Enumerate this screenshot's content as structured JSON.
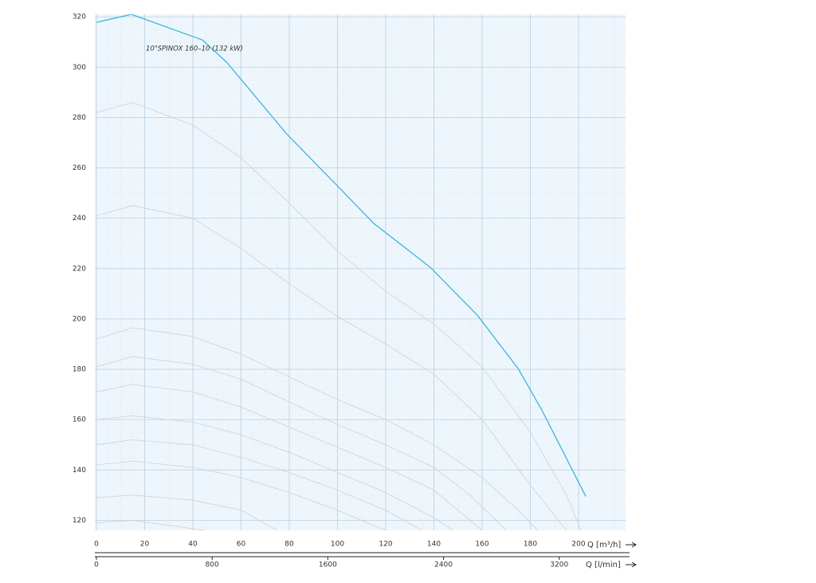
{
  "chart_data": {
    "type": "line",
    "annotation": "10\"SPINOX 160–10 (132 kW)",
    "x_label": "Q [m³/h]",
    "x2_label": "Q [l/min]",
    "xlim": [
      0,
      220
    ],
    "xticks": [
      0,
      20,
      40,
      60,
      80,
      100,
      120,
      140,
      160,
      180,
      200
    ],
    "x2lim": [
      0,
      3667
    ],
    "x2ticks": [
      0,
      800,
      1600,
      2400,
      3200
    ],
    "ylim": [
      116,
      321
    ],
    "yticks": [
      120,
      140,
      160,
      180,
      200,
      220,
      240,
      260,
      280,
      300,
      320
    ],
    "grid": true,
    "series": [
      {
        "color": "#d4d4d4",
        "x": [
          0,
          15,
          40,
          60,
          80,
          100,
          120,
          140,
          160,
          180,
          195,
          201
        ],
        "values": [
          282,
          286,
          277,
          264,
          246,
          227,
          211,
          198,
          181,
          155,
          130,
          116
        ]
      },
      {
        "color": "#d4d4d4",
        "x": [
          0,
          15,
          40,
          60,
          80,
          100,
          120,
          140,
          160,
          180,
          195
        ],
        "values": [
          241,
          245,
          240,
          228,
          214,
          201,
          190,
          178,
          160,
          134,
          116
        ]
      },
      {
        "color": "#d4d4d4",
        "x": [
          0,
          15,
          40,
          60,
          80,
          100,
          120,
          140,
          160,
          175,
          183
        ],
        "values": [
          192,
          196.5,
          193,
          186,
          177,
          168,
          160,
          150,
          137,
          124,
          116
        ]
      },
      {
        "color": "#d4d4d4",
        "x": [
          0,
          15,
          40,
          60,
          80,
          100,
          120,
          140,
          155,
          170
        ],
        "values": [
          181,
          185,
          182,
          176,
          167,
          158,
          150,
          141,
          130,
          116
        ]
      },
      {
        "color": "#d4d4d4",
        "x": [
          0,
          15,
          40,
          60,
          80,
          100,
          120,
          140,
          160
        ],
        "values": [
          171,
          174,
          171,
          165,
          157,
          149,
          141,
          132,
          116
        ]
      },
      {
        "color": "#d4d4d4",
        "x": [
          0,
          15,
          40,
          60,
          80,
          100,
          120,
          140,
          148
        ],
        "values": [
          160,
          161.5,
          159,
          154,
          147,
          139,
          131,
          121,
          116
        ]
      },
      {
        "color": "#d4d4d4",
        "x": [
          0,
          15,
          40,
          60,
          80,
          100,
          120,
          135
        ],
        "values": [
          150,
          152,
          150,
          145,
          139,
          132,
          124,
          116
        ]
      },
      {
        "color": "#d4d4d4",
        "x": [
          0,
          15,
          40,
          60,
          80,
          100,
          120
        ],
        "values": [
          142,
          143.5,
          141,
          137,
          131,
          124,
          116
        ]
      },
      {
        "color": "#d4d4d4",
        "x": [
          0,
          15,
          40,
          60,
          75
        ],
        "values": [
          129,
          130,
          128,
          124,
          116
        ]
      },
      {
        "color": "#d4d4d4",
        "x": [
          0,
          15,
          30,
          45
        ],
        "values": [
          119,
          120,
          118,
          116
        ]
      },
      {
        "color": "#3cb6dc",
        "x": [
          0,
          14.5,
          44,
          54,
          79,
          99,
          115,
          138.5,
          158,
          175,
          185,
          203
        ],
        "values": [
          317.8,
          321,
          310.8,
          302,
          273.4,
          253.8,
          238,
          220.5,
          201.5,
          180.2,
          163.4,
          129.5
        ]
      }
    ]
  }
}
